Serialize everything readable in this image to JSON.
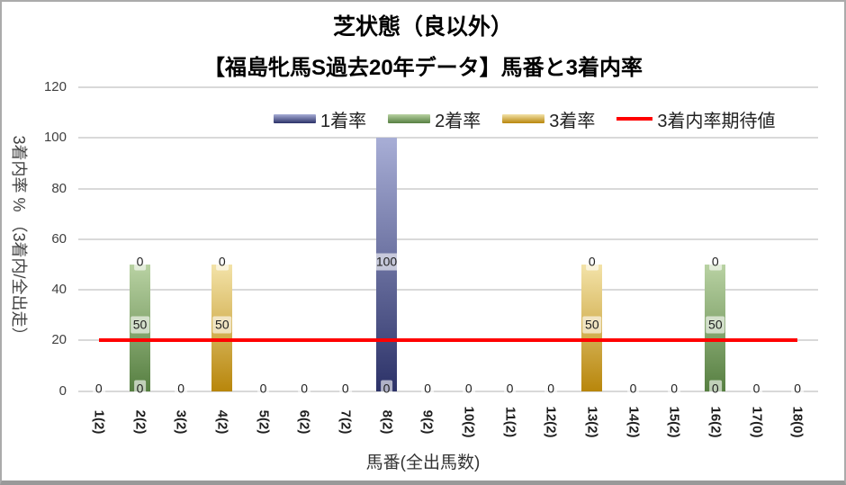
{
  "chart_data": {
    "type": "bar",
    "stacked": true,
    "title": "芝状態（良以外）",
    "subtitle": "【福島牝馬S過去20年データ】馬番と3着内率",
    "xlabel": "馬番(全出馬数)",
    "ylabel": "3着内率 % （3着内/全出走）",
    "ylim": [
      0,
      120
    ],
    "yticks": [
      0,
      20,
      40,
      60,
      80,
      100,
      120
    ],
    "grid": true,
    "legend_position": "top-inside",
    "categories": [
      "1(2)",
      "2(2)",
      "3(2)",
      "4(2)",
      "5(2)",
      "6(2)",
      "7(2)",
      "8(2)",
      "9(2)",
      "10(2)",
      "11(2)",
      "12(2)",
      "13(2)",
      "14(2)",
      "15(2)",
      "16(2)",
      "17(0)",
      "18(0)"
    ],
    "series": [
      {
        "name": "1着率",
        "color_top": "#a8aed6",
        "color_bottom": "#2c3268",
        "values": [
          0,
          0,
          0,
          0,
          0,
          0,
          0,
          100,
          0,
          0,
          0,
          0,
          0,
          0,
          0,
          0,
          0,
          0
        ]
      },
      {
        "name": "2着率",
        "color_top": "#b9d2a3",
        "color_bottom": "#567f41",
        "values": [
          0,
          50,
          0,
          0,
          0,
          0,
          0,
          0,
          0,
          0,
          0,
          0,
          0,
          0,
          0,
          50,
          0,
          0
        ]
      },
      {
        "name": "3着率",
        "color_top": "#f3e3a9",
        "color_bottom": "#b8860b",
        "values": [
          0,
          0,
          0,
          50,
          0,
          0,
          0,
          0,
          0,
          0,
          0,
          0,
          50,
          0,
          0,
          0,
          0,
          0
        ]
      }
    ],
    "ref_line": {
      "name": "3着内率期待値",
      "value": 20,
      "color": "#ff0000"
    },
    "data_labels": [
      {
        "cat": 0,
        "text": "0",
        "at": 0
      },
      {
        "cat": 1,
        "text": "0",
        "at": 50
      },
      {
        "cat": 1,
        "text": "50",
        "at": 25
      },
      {
        "cat": 1,
        "text": "0",
        "at": 0
      },
      {
        "cat": 2,
        "text": "0",
        "at": 0
      },
      {
        "cat": 3,
        "text": "0",
        "at": 50
      },
      {
        "cat": 3,
        "text": "50",
        "at": 25
      },
      {
        "cat": 4,
        "text": "0",
        "at": 0
      },
      {
        "cat": 5,
        "text": "0",
        "at": 0
      },
      {
        "cat": 6,
        "text": "0",
        "at": 0
      },
      {
        "cat": 7,
        "text": "100",
        "at": 50
      },
      {
        "cat": 7,
        "text": "0",
        "at": 0
      },
      {
        "cat": 8,
        "text": "0",
        "at": 0
      },
      {
        "cat": 9,
        "text": "0",
        "at": 0
      },
      {
        "cat": 10,
        "text": "0",
        "at": 0
      },
      {
        "cat": 11,
        "text": "0",
        "at": 0
      },
      {
        "cat": 12,
        "text": "0",
        "at": 50
      },
      {
        "cat": 12,
        "text": "50",
        "at": 25
      },
      {
        "cat": 13,
        "text": "0",
        "at": 0
      },
      {
        "cat": 14,
        "text": "0",
        "at": 0
      },
      {
        "cat": 15,
        "text": "0",
        "at": 50
      },
      {
        "cat": 15,
        "text": "50",
        "at": 25
      },
      {
        "cat": 15,
        "text": "0",
        "at": 0
      },
      {
        "cat": 16,
        "text": "0",
        "at": 0
      },
      {
        "cat": 17,
        "text": "0",
        "at": 0
      }
    ]
  }
}
